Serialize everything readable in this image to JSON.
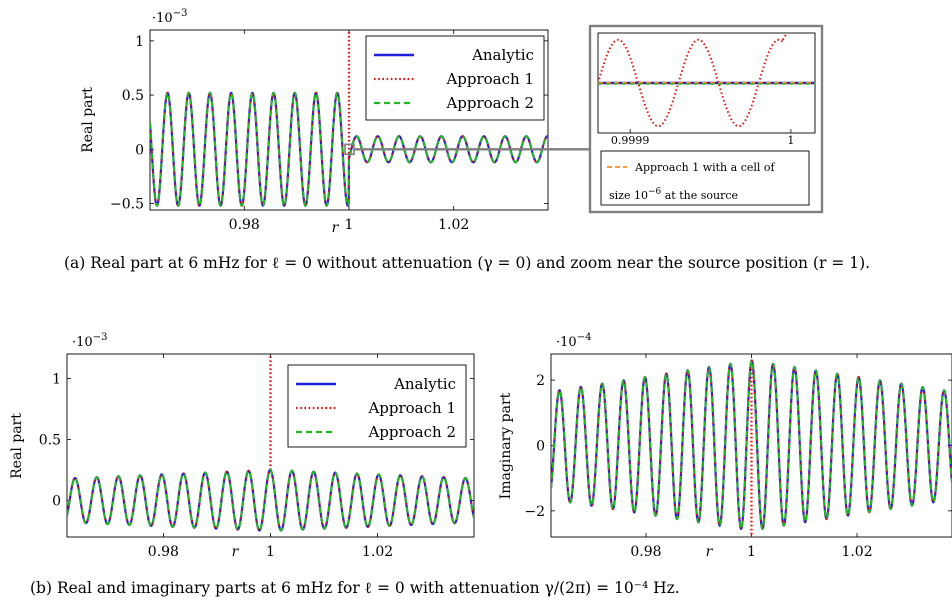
{
  "captions": {
    "a": "(a) Real part at 6 mHz for ℓ = 0 without attenuation (γ = 0) and zoom near the source position (r = 1).",
    "b": "(b) Real and imaginary parts at 6 mHz for ℓ = 0 with attenuation γ/(2π) = 10⁻⁴ Hz."
  },
  "colors": {
    "analytic": "#1f1fe0",
    "approach1": "#e01010",
    "approach2": "#22b822",
    "approach1_fine": "#ff8c1a",
    "zoom_frame": "#7f7f7f"
  },
  "chart_data": [
    {
      "id": "a-main",
      "type": "line",
      "xlabel": "r",
      "ylabel": "Real part",
      "multiplier": "·10⁻³",
      "xlim": [
        0.962,
        1.038
      ],
      "ylim": [
        -0.56,
        1.1
      ],
      "xticks": [
        {
          "v": 0.98,
          "label": "0.98"
        },
        {
          "v": 1.0,
          "label": "1"
        },
        {
          "v": 1.02,
          "label": "1.02"
        }
      ],
      "yticks": [
        {
          "v": -0.5,
          "label": "−0.5"
        },
        {
          "v": 0,
          "label": "0"
        },
        {
          "v": 0.5,
          "label": "0.5"
        },
        {
          "v": 1,
          "label": "1"
        }
      ],
      "legend": [
        "Analytic",
        "Approach 1",
        "Approach 2"
      ],
      "legend_position": "top-right",
      "series_model": {
        "left": {
          "amplitude": 0.52,
          "period": 0.00405,
          "peak_at": 0.9775,
          "range": [
            0.962,
            1.0
          ]
        },
        "right": {
          "amplitude": 0.12,
          "offset": 0.0,
          "period": 0.00405,
          "peak_at": 1.0055,
          "range": [
            1.0,
            1.038
          ]
        },
        "approach1_spike_at": 1.0
      }
    },
    {
      "id": "a-zoom",
      "type": "line",
      "xlim": [
        0.99988,
        1.000015
      ],
      "xticks": [
        {
          "v": 0.9999,
          "label": "0.9999"
        },
        {
          "v": 1.0,
          "label": "1"
        }
      ],
      "legend": [
        "Approach 1 with a cell of size 10⁻⁶ at the source"
      ],
      "series_model": {
        "approach1_oscillation": {
          "period": 5e-05,
          "center": 0.0,
          "amplitude": 0.9
        }
      }
    },
    {
      "id": "b-real",
      "type": "line",
      "xlabel": "r",
      "ylabel": "Real part",
      "multiplier": "·10⁻³",
      "xlim": [
        0.962,
        1.038
      ],
      "ylim": [
        -0.3,
        1.2
      ],
      "xticks": [
        {
          "v": 0.98,
          "label": "0.98"
        },
        {
          "v": 1.0,
          "label": "1"
        },
        {
          "v": 1.02,
          "label": "1.02"
        }
      ],
      "yticks": [
        {
          "v": 0,
          "label": "0"
        },
        {
          "v": 0.5,
          "label": "0.5"
        },
        {
          "v": 1,
          "label": "1"
        }
      ],
      "legend": [
        "Analytic",
        "Approach 1",
        "Approach 2"
      ],
      "legend_position": "top-right",
      "series_model": {
        "amplitude_min": 0.18,
        "amplitude_max": 0.25,
        "period": 0.00405,
        "approach1_spike_at": 1.0
      }
    },
    {
      "id": "b-imag",
      "type": "line",
      "xlabel": "r",
      "ylabel": "Imaginary part",
      "multiplier": "·10⁻⁴",
      "xlim": [
        0.962,
        1.038
      ],
      "ylim": [
        -2.8,
        2.8
      ],
      "xticks": [
        {
          "v": 0.98,
          "label": "0.98"
        },
        {
          "v": 1.0,
          "label": "1"
        },
        {
          "v": 1.02,
          "label": "1.02"
        }
      ],
      "yticks": [
        {
          "v": -2,
          "label": "−2"
        },
        {
          "v": 0,
          "label": "0"
        },
        {
          "v": 2,
          "label": "2"
        }
      ],
      "series_model": {
        "amplitude_min": 1.65,
        "amplitude_max": 2.6,
        "period": 0.00405,
        "approach1_spike_at": 1.0
      }
    }
  ]
}
